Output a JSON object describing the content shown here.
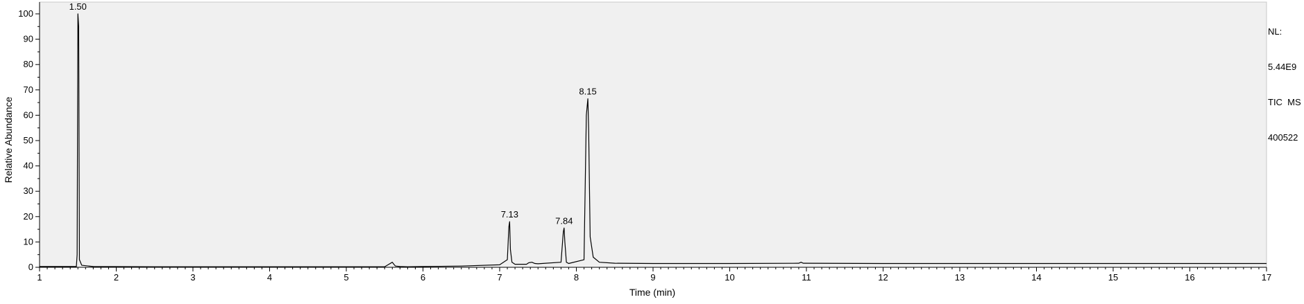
{
  "side_info": {
    "nl_label": "NL:",
    "nl_value": "5.44E9",
    "trace": "TIC  MS",
    "sample": "400522"
  },
  "chart_data": {
    "type": "line",
    "title": "",
    "xlabel": "Time (min)",
    "ylabel": "Relative Abundance",
    "xlim": [
      1,
      17
    ],
    "ylim": [
      0,
      100
    ],
    "x_ticks": [
      1,
      2,
      3,
      4,
      5,
      6,
      7,
      8,
      9,
      10,
      11,
      12,
      13,
      14,
      15,
      16,
      17
    ],
    "y_ticks": [
      0,
      10,
      20,
      30,
      40,
      50,
      60,
      70,
      80,
      90,
      100
    ],
    "grid": false,
    "plot_background": "#f0f0f0",
    "line_color": "#000000",
    "peak_labels": [
      {
        "label": "1.50",
        "x": 1.5,
        "y": 100
      },
      {
        "label": "7.13",
        "x": 7.13,
        "y": 18
      },
      {
        "label": "7.84",
        "x": 7.84,
        "y": 15.5
      },
      {
        "label": "8.15",
        "x": 8.15,
        "y": 66.5
      }
    ],
    "series": [
      {
        "x": [
          1.0,
          1.48,
          1.49,
          1.5,
          1.51,
          1.52,
          1.55,
          1.7,
          2.5,
          3.5,
          4.5,
          5.5,
          5.6,
          5.62,
          5.64,
          5.7,
          5.8,
          6.0,
          6.5,
          7.0,
          7.1,
          7.12,
          7.13,
          7.14,
          7.16,
          7.2,
          7.35,
          7.38,
          7.42,
          7.46,
          7.5,
          7.8,
          7.83,
          7.84,
          7.85,
          7.87,
          7.9,
          8.1,
          8.13,
          8.15,
          8.16,
          8.18,
          8.22,
          8.3,
          8.5,
          9.0,
          10.0,
          10.9,
          10.93,
          10.96,
          12.0,
          13.0,
          14.0,
          15.0,
          16.0,
          17.0
        ],
        "y": [
          0.3,
          0.3,
          5,
          100,
          95,
          3,
          0.8,
          0.3,
          0.2,
          0.2,
          0.2,
          0.2,
          2.0,
          1.2,
          0.5,
          0.3,
          0.2,
          0.3,
          0.5,
          1.0,
          3,
          16,
          18,
          7,
          2,
          1.2,
          1.2,
          1.8,
          2.0,
          1.5,
          1.4,
          2,
          14,
          15.5,
          10,
          2,
          1.5,
          3,
          60,
          66.5,
          55,
          12,
          4,
          2,
          1.6,
          1.5,
          1.5,
          1.6,
          2.0,
          1.6,
          1.5,
          1.5,
          1.5,
          1.5,
          1.5,
          1.5
        ]
      }
    ]
  }
}
